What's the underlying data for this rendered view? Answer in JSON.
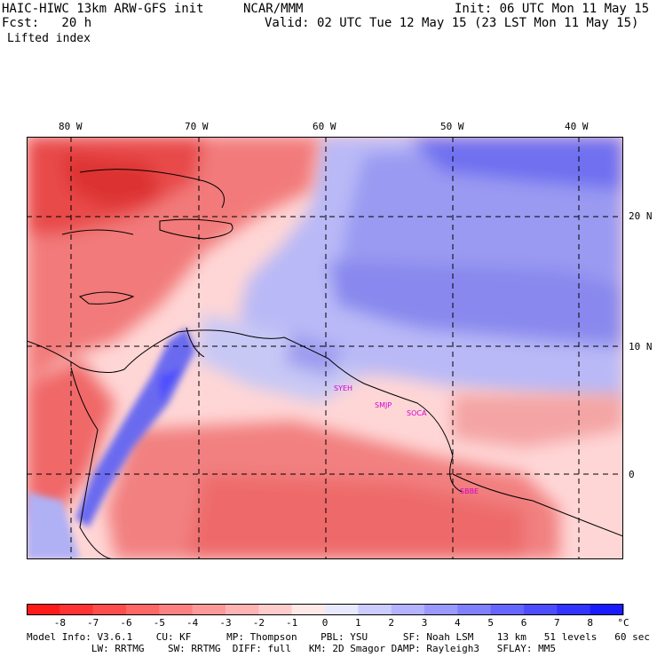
{
  "header": {
    "model_title": "HAIC-HIWC 13km ARW-GFS init",
    "institution": "NCAR/MMM",
    "init": "Init: 06 UTC Mon 11 May 15",
    "fcst": "Fcst:   20 h",
    "valid": "Valid: 02 UTC Tue 12 May 15 (23 LST Mon 11 May 15)",
    "field": "Lifted index"
  },
  "map": {
    "lon_labels": [
      "80 W",
      "70 W",
      "60 W",
      "50 W",
      "40 W"
    ],
    "lat_labels": [
      "20 N",
      "10 N",
      "0"
    ],
    "station_labels": [
      "SYEH",
      "SMJP",
      "SOCA",
      "SBBE"
    ]
  },
  "colorbar": {
    "unit": "°C",
    "levels": [
      "-8",
      "-7",
      "-6",
      "-5",
      "-4",
      "-3",
      "-2",
      "-1",
      "0",
      "1",
      "2",
      "3",
      "4",
      "5",
      "6",
      "7",
      "8"
    ],
    "colors": [
      "#ff1a1a",
      "#ff3333",
      "#ff4d4d",
      "#ff6666",
      "#ff8080",
      "#ff9999",
      "#ffb3b3",
      "#ffcccc",
      "#ffe8e8",
      "#e8e8ff",
      "#ccccff",
      "#b3b3ff",
      "#9999ff",
      "#8080ff",
      "#6666ff",
      "#4d4dff",
      "#3333ff",
      "#1a1aff"
    ]
  },
  "footer": {
    "line1": "Model Info: V3.6.1    CU: KF      MP: Thompson    PBL: YSU      SF: Noah LSM    13 km   51 levels   60 sec",
    "line2": "           LW: RRTMG    SW: RRTMG  DIFF: full   KM: 2D Smagor DAMP: Rayleigh3   SFLAY: MM5"
  }
}
